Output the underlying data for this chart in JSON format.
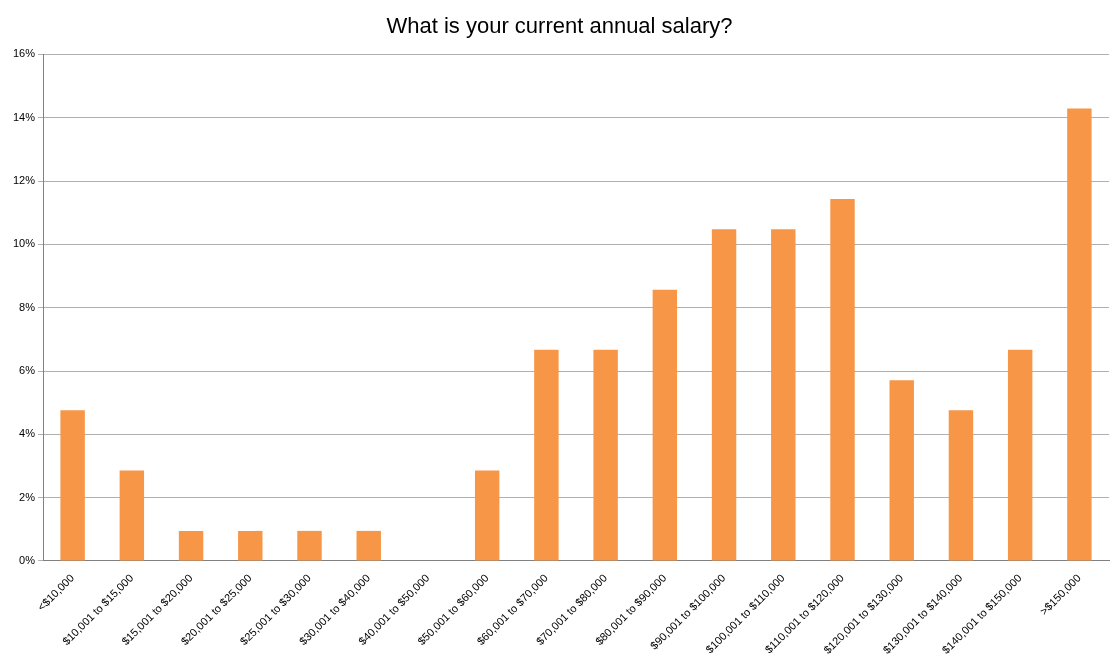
{
  "chart_data": {
    "type": "bar",
    "title": "What is your current annual salary?",
    "categories": [
      "<$10,000",
      "$10,001 to $15,000",
      "$15,001 to $20,000",
      "$20,001 to $25,000",
      "$25,001 to $30,000",
      "$30,001 to $40,000",
      "$40,001 to $50,000",
      "$50,001 to $60,000",
      "$60,001 to $70,000",
      "$70,001 to $80,000",
      "$80,001 to $90,000",
      "$90,001 to $100,000",
      "$100,001 to $110,000",
      "$110,001 to $120,000",
      "$120,001 to $130,000",
      "$130,001 to $140,000",
      "$140,001 to $150,000",
      ">$150,000"
    ],
    "values": [
      4.76,
      2.86,
      0.95,
      0.95,
      0.95,
      0.95,
      0,
      2.86,
      6.67,
      6.67,
      8.57,
      10.48,
      10.48,
      11.43,
      5.71,
      4.76,
      6.67,
      14.29
    ],
    "color": "#f79646",
    "ylim": [
      0,
      16
    ],
    "yticks": [
      {
        "value": 0,
        "label": "0%"
      },
      {
        "value": 2,
        "label": "2%"
      },
      {
        "value": 4,
        "label": "4%"
      },
      {
        "value": 6,
        "label": "6%"
      },
      {
        "value": 8,
        "label": "8%"
      },
      {
        "value": 10,
        "label": "10%"
      },
      {
        "value": 12,
        "label": "12%"
      },
      {
        "value": 14,
        "label": "14%"
      },
      {
        "value": 16,
        "label": "16%"
      }
    ],
    "grid": "y",
    "legend": false
  }
}
